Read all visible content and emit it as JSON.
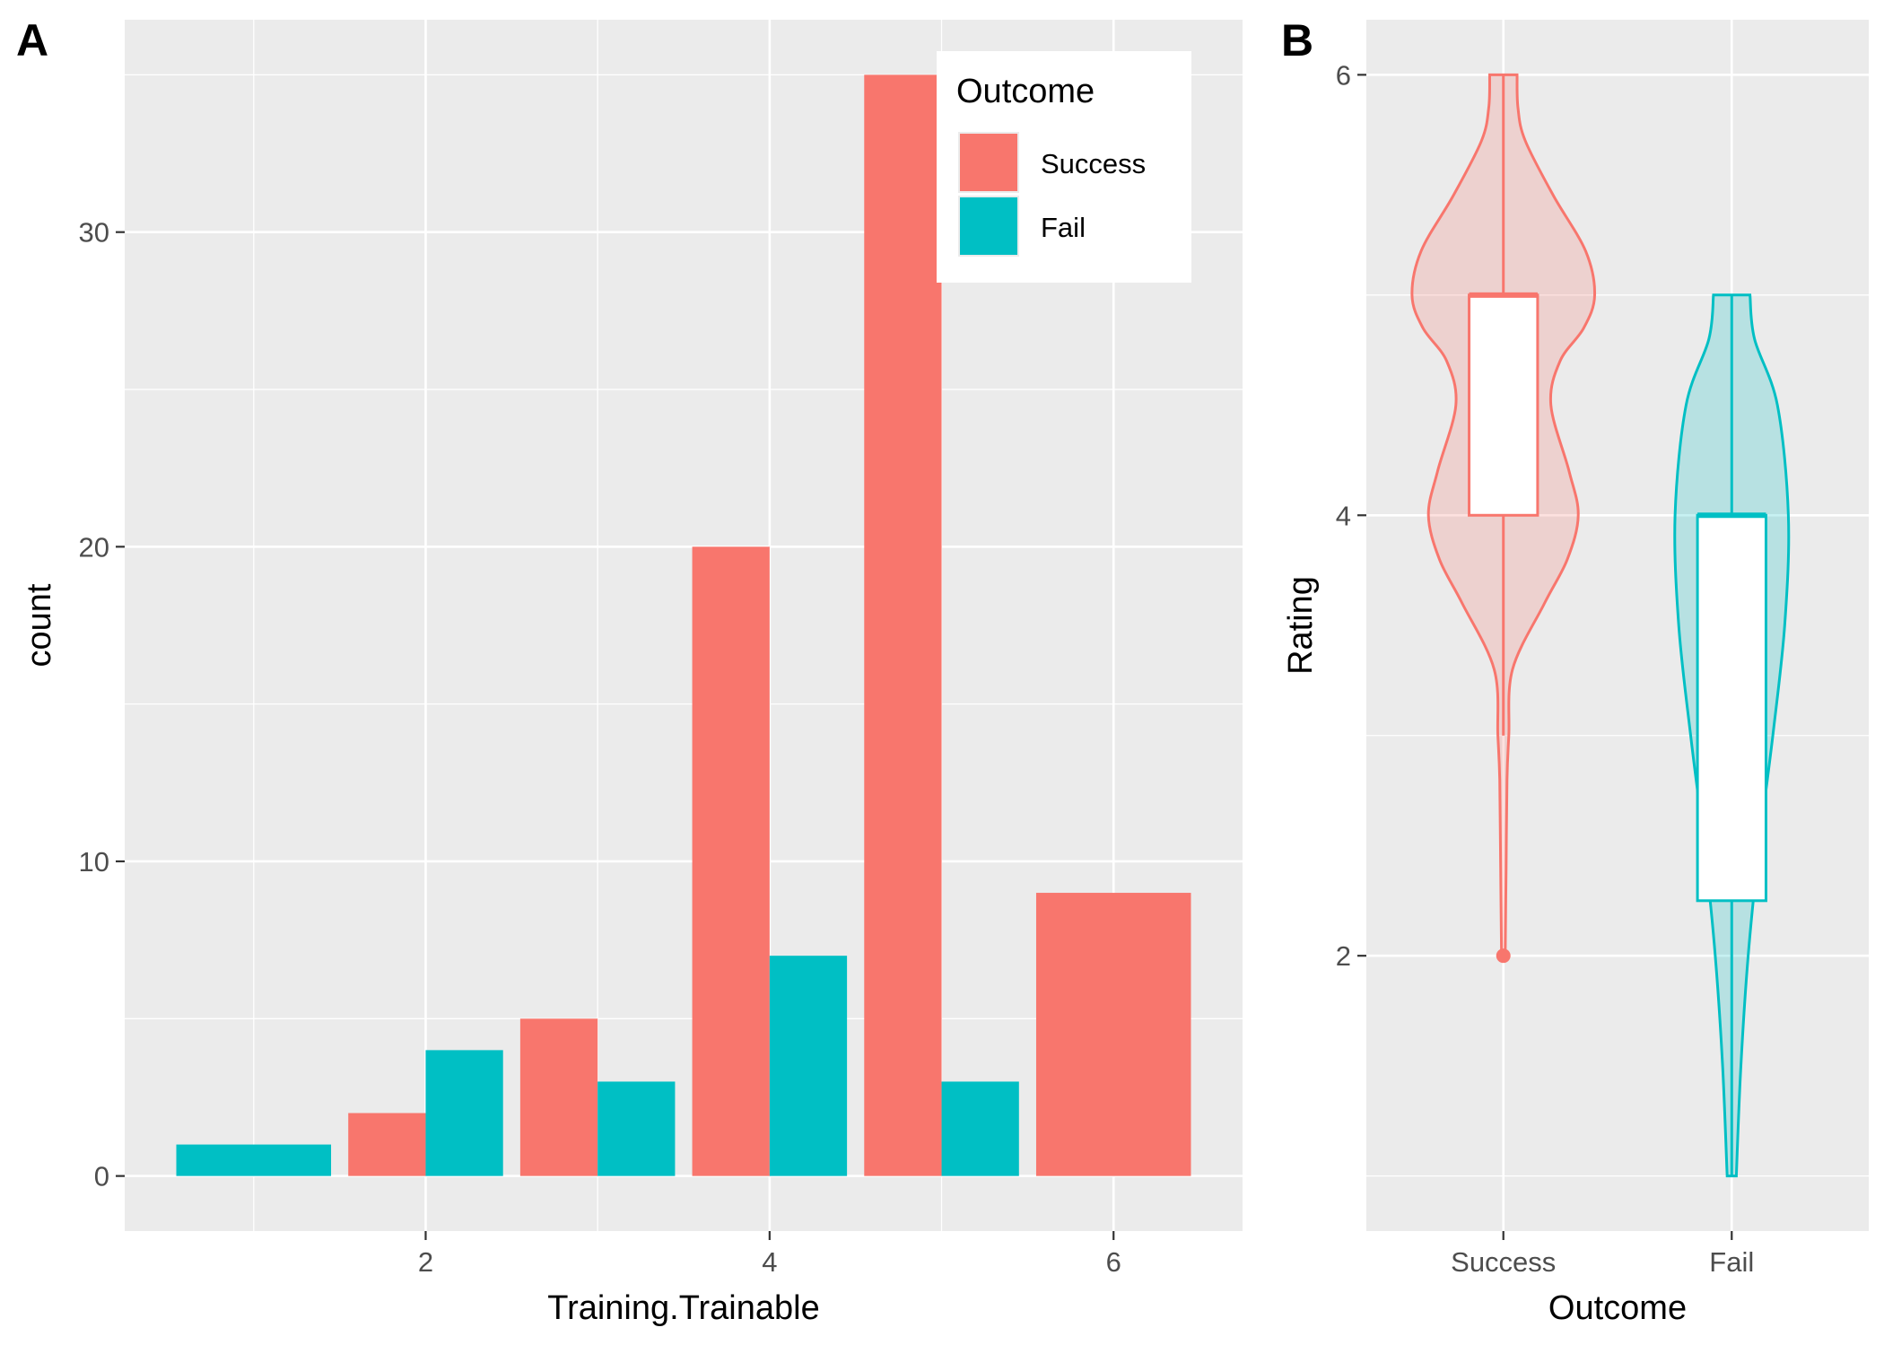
{
  "panels": {
    "a_label": "A",
    "b_label": "B"
  },
  "colors": {
    "success": "#F8766D",
    "fail": "#00BFC4",
    "panel_bg": "#EBEBEB",
    "grid": "#FFFFFF"
  },
  "chart_data": [
    {
      "type": "bar",
      "panel": "A",
      "xlabel": "Training.Trainable",
      "ylabel": "count",
      "x": [
        1,
        2,
        3,
        4,
        5,
        6
      ],
      "xticks": [
        "2",
        "4",
        "6"
      ],
      "xlim": [
        0.25,
        6.75
      ],
      "yticks": [
        "0",
        "10",
        "20",
        "30"
      ],
      "ylim": [
        -1.75,
        36.75
      ],
      "grid": true,
      "series": [
        {
          "name": "Success",
          "values": [
            0,
            2,
            5,
            20,
            35,
            9
          ]
        },
        {
          "name": "Fail",
          "values": [
            1,
            4,
            3,
            7,
            3,
            0
          ]
        }
      ],
      "legend": {
        "title": "Outcome",
        "entries": [
          "Success",
          "Fail"
        ],
        "position": "top-right"
      }
    },
    {
      "type": "violin",
      "panel": "B",
      "xlabel": "Outcome",
      "ylabel": "Rating",
      "categories": [
        "Success",
        "Fail"
      ],
      "yticks": [
        "2",
        "4",
        "6"
      ],
      "ylim": [
        0.75,
        6.25
      ],
      "grid": true,
      "series": [
        {
          "name": "Success",
          "box": {
            "min": 3,
            "q1": 4,
            "median": 5,
            "q3": 5,
            "max": 6
          },
          "outliers": [
            2
          ],
          "density": [
            [
              2,
              0.02
            ],
            [
              2.4,
              0.03
            ],
            [
              2.8,
              0.04
            ],
            [
              3.0,
              0.06
            ],
            [
              3.3,
              0.1
            ],
            [
              3.6,
              0.45
            ],
            [
              3.8,
              0.7
            ],
            [
              4.0,
              0.82
            ],
            [
              4.2,
              0.72
            ],
            [
              4.5,
              0.52
            ],
            [
              4.7,
              0.62
            ],
            [
              4.85,
              0.88
            ],
            [
              5.0,
              1.0
            ],
            [
              5.2,
              0.9
            ],
            [
              5.45,
              0.55
            ],
            [
              5.7,
              0.24
            ],
            [
              5.85,
              0.16
            ],
            [
              6.0,
              0.15
            ]
          ]
        },
        {
          "name": "Fail",
          "box": {
            "min": 1,
            "q1": 2.25,
            "median": 4,
            "q3": 4,
            "max": 5
          },
          "outliers": [],
          "density": [
            [
              1,
              0.05
            ],
            [
              1.5,
              0.1
            ],
            [
              2.0,
              0.18
            ],
            [
              2.5,
              0.3
            ],
            [
              3.0,
              0.45
            ],
            [
              3.5,
              0.58
            ],
            [
              4.0,
              0.62
            ],
            [
              4.5,
              0.5
            ],
            [
              4.8,
              0.25
            ],
            [
              5.0,
              0.2
            ]
          ]
        }
      ]
    }
  ]
}
